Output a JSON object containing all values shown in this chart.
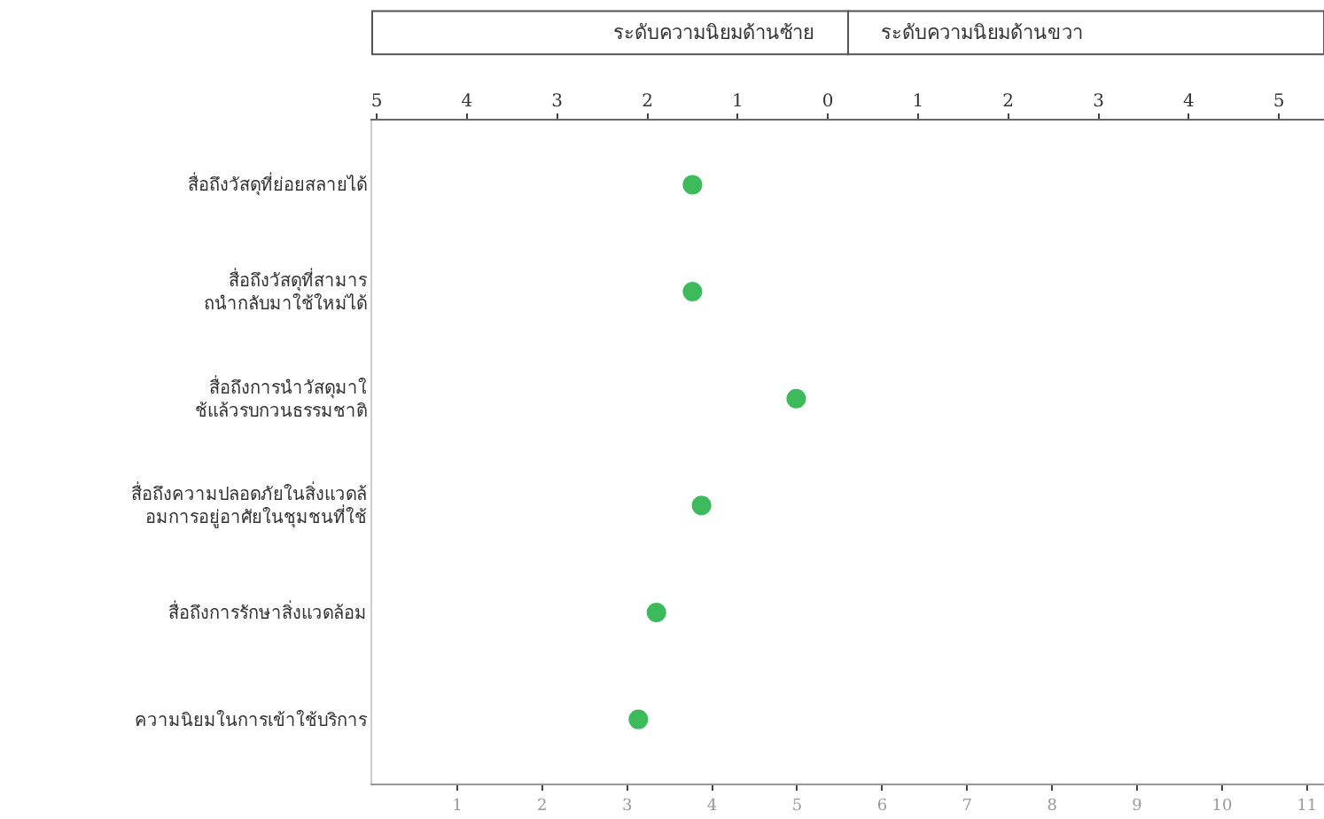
{
  "chart_data": {
    "type": "scatter",
    "orientation": "horizontal",
    "annotations": [
      "ระดับความนิยมด้านซ้าย",
      "ระดับความนิยมด้านขวา"
    ],
    "categories": [
      "สื่อถึงวัสดุที่ย่อยสลายได้",
      "สื่อถึงวัสดุที่สามารถนำกลับมาใช้ใหม่ได้",
      "สื่อถึงการนำวัสดุมาใช้แล้วรบกวนธรรมชาติ",
      "สื่อถึงความปลอดภัยในสิ่งแวดล้อมการอยู่อาศัยในชุมชนที่ใช้",
      "สื่อถึงการรักษาสิ่งแวดล้อม",
      "ความนิยมในการเข้าใช้บริการ"
    ],
    "series": [
      {
        "color": "#3dba5c",
        "axis": "x2",
        "values": [
          -1.5,
          -1.5,
          -0.35,
          -1.4,
          -1.9,
          -2.1
        ]
      }
    ],
    "xlim": [
      0,
      11.2
    ],
    "xticks": [
      1,
      2,
      3,
      4,
      5,
      6,
      7,
      8,
      9,
      10,
      11
    ],
    "x2lim": [
      -5.05,
      5.5
    ],
    "x2ticks": [
      {
        "value": -5,
        "label": "5"
      },
      {
        "value": -4,
        "label": "4"
      },
      {
        "value": -3,
        "label": "3"
      },
      {
        "value": -2,
        "label": "2"
      },
      {
        "value": -1,
        "label": "1"
      },
      0,
      1,
      2,
      3,
      4,
      5
    ],
    "marker": "circle",
    "grid": false,
    "legend": false
  }
}
